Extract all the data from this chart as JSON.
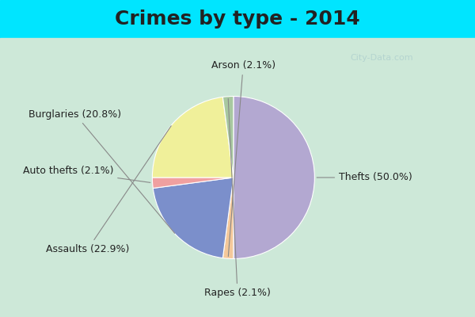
{
  "title": "Crimes by type - 2014",
  "slices": [
    {
      "label": "Thefts (50.0%)",
      "value": 50.0,
      "color": "#b3a8d1"
    },
    {
      "label": "Arson (2.1%)",
      "value": 2.1,
      "color": "#f4c89a"
    },
    {
      "label": "Burglaries (20.8%)",
      "value": 20.8,
      "color": "#7b8fcb"
    },
    {
      "label": "Auto thefts (2.1%)",
      "value": 2.1,
      "color": "#f0a0a0"
    },
    {
      "label": "Assaults (22.9%)",
      "value": 22.9,
      "color": "#f0f09a"
    },
    {
      "label": "Rapes (2.1%)",
      "value": 2.1,
      "color": "#a8c8a0"
    }
  ],
  "title_fontsize": 18,
  "title_color": "#222222",
  "bg_top": "#00e5ff",
  "bg_main": "#cde8d8",
  "label_fontsize": 9,
  "watermark": "City-Data.com"
}
